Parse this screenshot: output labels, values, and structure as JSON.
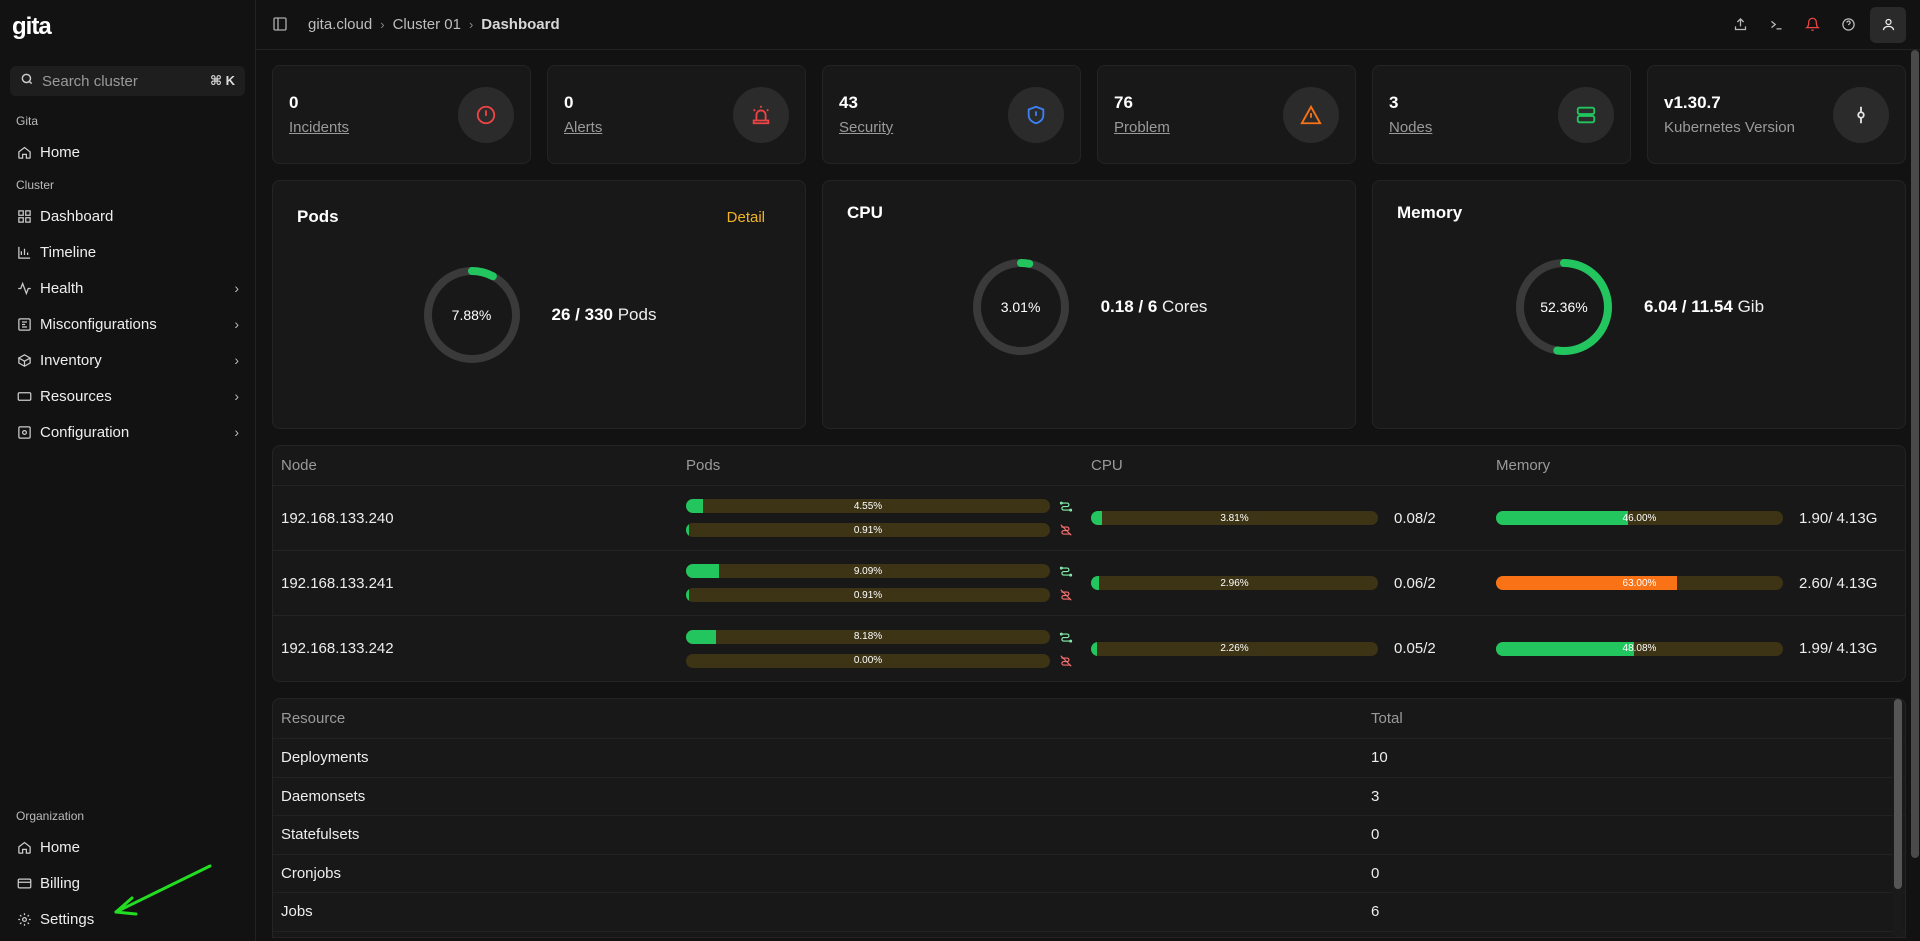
{
  "app": {
    "logo": "gita"
  },
  "search": {
    "placeholder": "Search cluster",
    "shortcut": "⌘ K"
  },
  "sidebar": {
    "groups": [
      {
        "label": "Gita",
        "items": [
          {
            "label": "Home",
            "icon": "home-icon"
          }
        ]
      },
      {
        "label": "Cluster",
        "items": [
          {
            "label": "Dashboard",
            "icon": "grid-icon"
          },
          {
            "label": "Timeline",
            "icon": "chart-icon"
          },
          {
            "label": "Health",
            "icon": "pulse-icon"
          },
          {
            "label": "Misconfigurations",
            "icon": "settings-icon"
          },
          {
            "label": "Inventory",
            "icon": "box-icon"
          },
          {
            "label": "Resources",
            "icon": "resource-icon"
          },
          {
            "label": "Configuration",
            "icon": "config-icon"
          }
        ]
      }
    ],
    "org": {
      "label": "Organization",
      "items": [
        {
          "label": "Home",
          "icon": "home-icon"
        },
        {
          "label": "Billing",
          "icon": "billing-icon"
        },
        {
          "label": "Settings",
          "icon": "gear-icon"
        }
      ]
    }
  },
  "breadcrumb": {
    "root": "gita.cloud",
    "cluster": "Cluster 01",
    "current": "Dashboard"
  },
  "stats": [
    {
      "value": "0",
      "label": "Incidents",
      "icon": "alert-circle-icon",
      "color": "#ef4444"
    },
    {
      "value": "0",
      "label": "Alerts",
      "icon": "siren-icon",
      "color": "#ef4444"
    },
    {
      "value": "43",
      "label": "Security",
      "icon": "shield-icon",
      "color": "#3b82f6"
    },
    {
      "value": "76",
      "label": "Problem",
      "icon": "warning-triangle-icon",
      "color": "#f97316"
    },
    {
      "value": "3",
      "label": "Nodes",
      "icon": "server-icon",
      "color": "#22c55e"
    },
    {
      "value": "v1.30.7",
      "label": "Kubernetes Version",
      "icon": "commit-icon",
      "color": "#e5e5e5"
    }
  ],
  "panels": {
    "pods": {
      "title": "Pods",
      "detail": "Detail",
      "percent": "7.88%",
      "fraction": 0.0788,
      "used": "26",
      "total": "330",
      "unit": "Pods"
    },
    "cpu": {
      "title": "CPU",
      "percent": "3.01%",
      "fraction": 0.0301,
      "used": "0.18",
      "total": "6",
      "unit": "Cores"
    },
    "memory": {
      "title": "Memory",
      "percent": "52.36%",
      "fraction": 0.5236,
      "used": "6.04",
      "total": "11.54",
      "unit": "Gib"
    }
  },
  "nodes_table": {
    "headers": {
      "node": "Node",
      "pods": "Pods",
      "cpu": "CPU",
      "memory": "Memory"
    },
    "rows": [
      {
        "ip": "192.168.133.240",
        "pods_running": "4.55%",
        "pods_running_f": 0.0455,
        "pods_failed": "0.91%",
        "pods_failed_f": 0.0091,
        "cpu": "3.81%",
        "cpu_f": 0.0381,
        "cpu_usage": "0.08/2",
        "mem": "46.00%",
        "mem_f": 0.46,
        "mem_usage": "1.90/ 4.13G",
        "mem_color": "#22c55e"
      },
      {
        "ip": "192.168.133.241",
        "pods_running": "9.09%",
        "pods_running_f": 0.0909,
        "pods_failed": "0.91%",
        "pods_failed_f": 0.0091,
        "cpu": "2.96%",
        "cpu_f": 0.0296,
        "cpu_usage": "0.06/2",
        "mem": "63.00%",
        "mem_f": 0.63,
        "mem_usage": "2.60/ 4.13G",
        "mem_color": "#f97316"
      },
      {
        "ip": "192.168.133.242",
        "pods_running": "8.18%",
        "pods_running_f": 0.0818,
        "pods_failed": "0.00%",
        "pods_failed_f": 0,
        "cpu": "2.26%",
        "cpu_f": 0.0226,
        "cpu_usage": "0.05/2",
        "mem": "48.08%",
        "mem_f": 0.4808,
        "mem_usage": "1.99/ 4.13G",
        "mem_color": "#22c55e"
      }
    ]
  },
  "resources_table": {
    "headers": {
      "resource": "Resource",
      "total": "Total"
    },
    "rows": [
      {
        "name": "Deployments",
        "total": "10"
      },
      {
        "name": "Daemonsets",
        "total": "3"
      },
      {
        "name": "Statefulsets",
        "total": "0"
      },
      {
        "name": "Cronjobs",
        "total": "0"
      },
      {
        "name": "Jobs",
        "total": "6"
      }
    ]
  }
}
